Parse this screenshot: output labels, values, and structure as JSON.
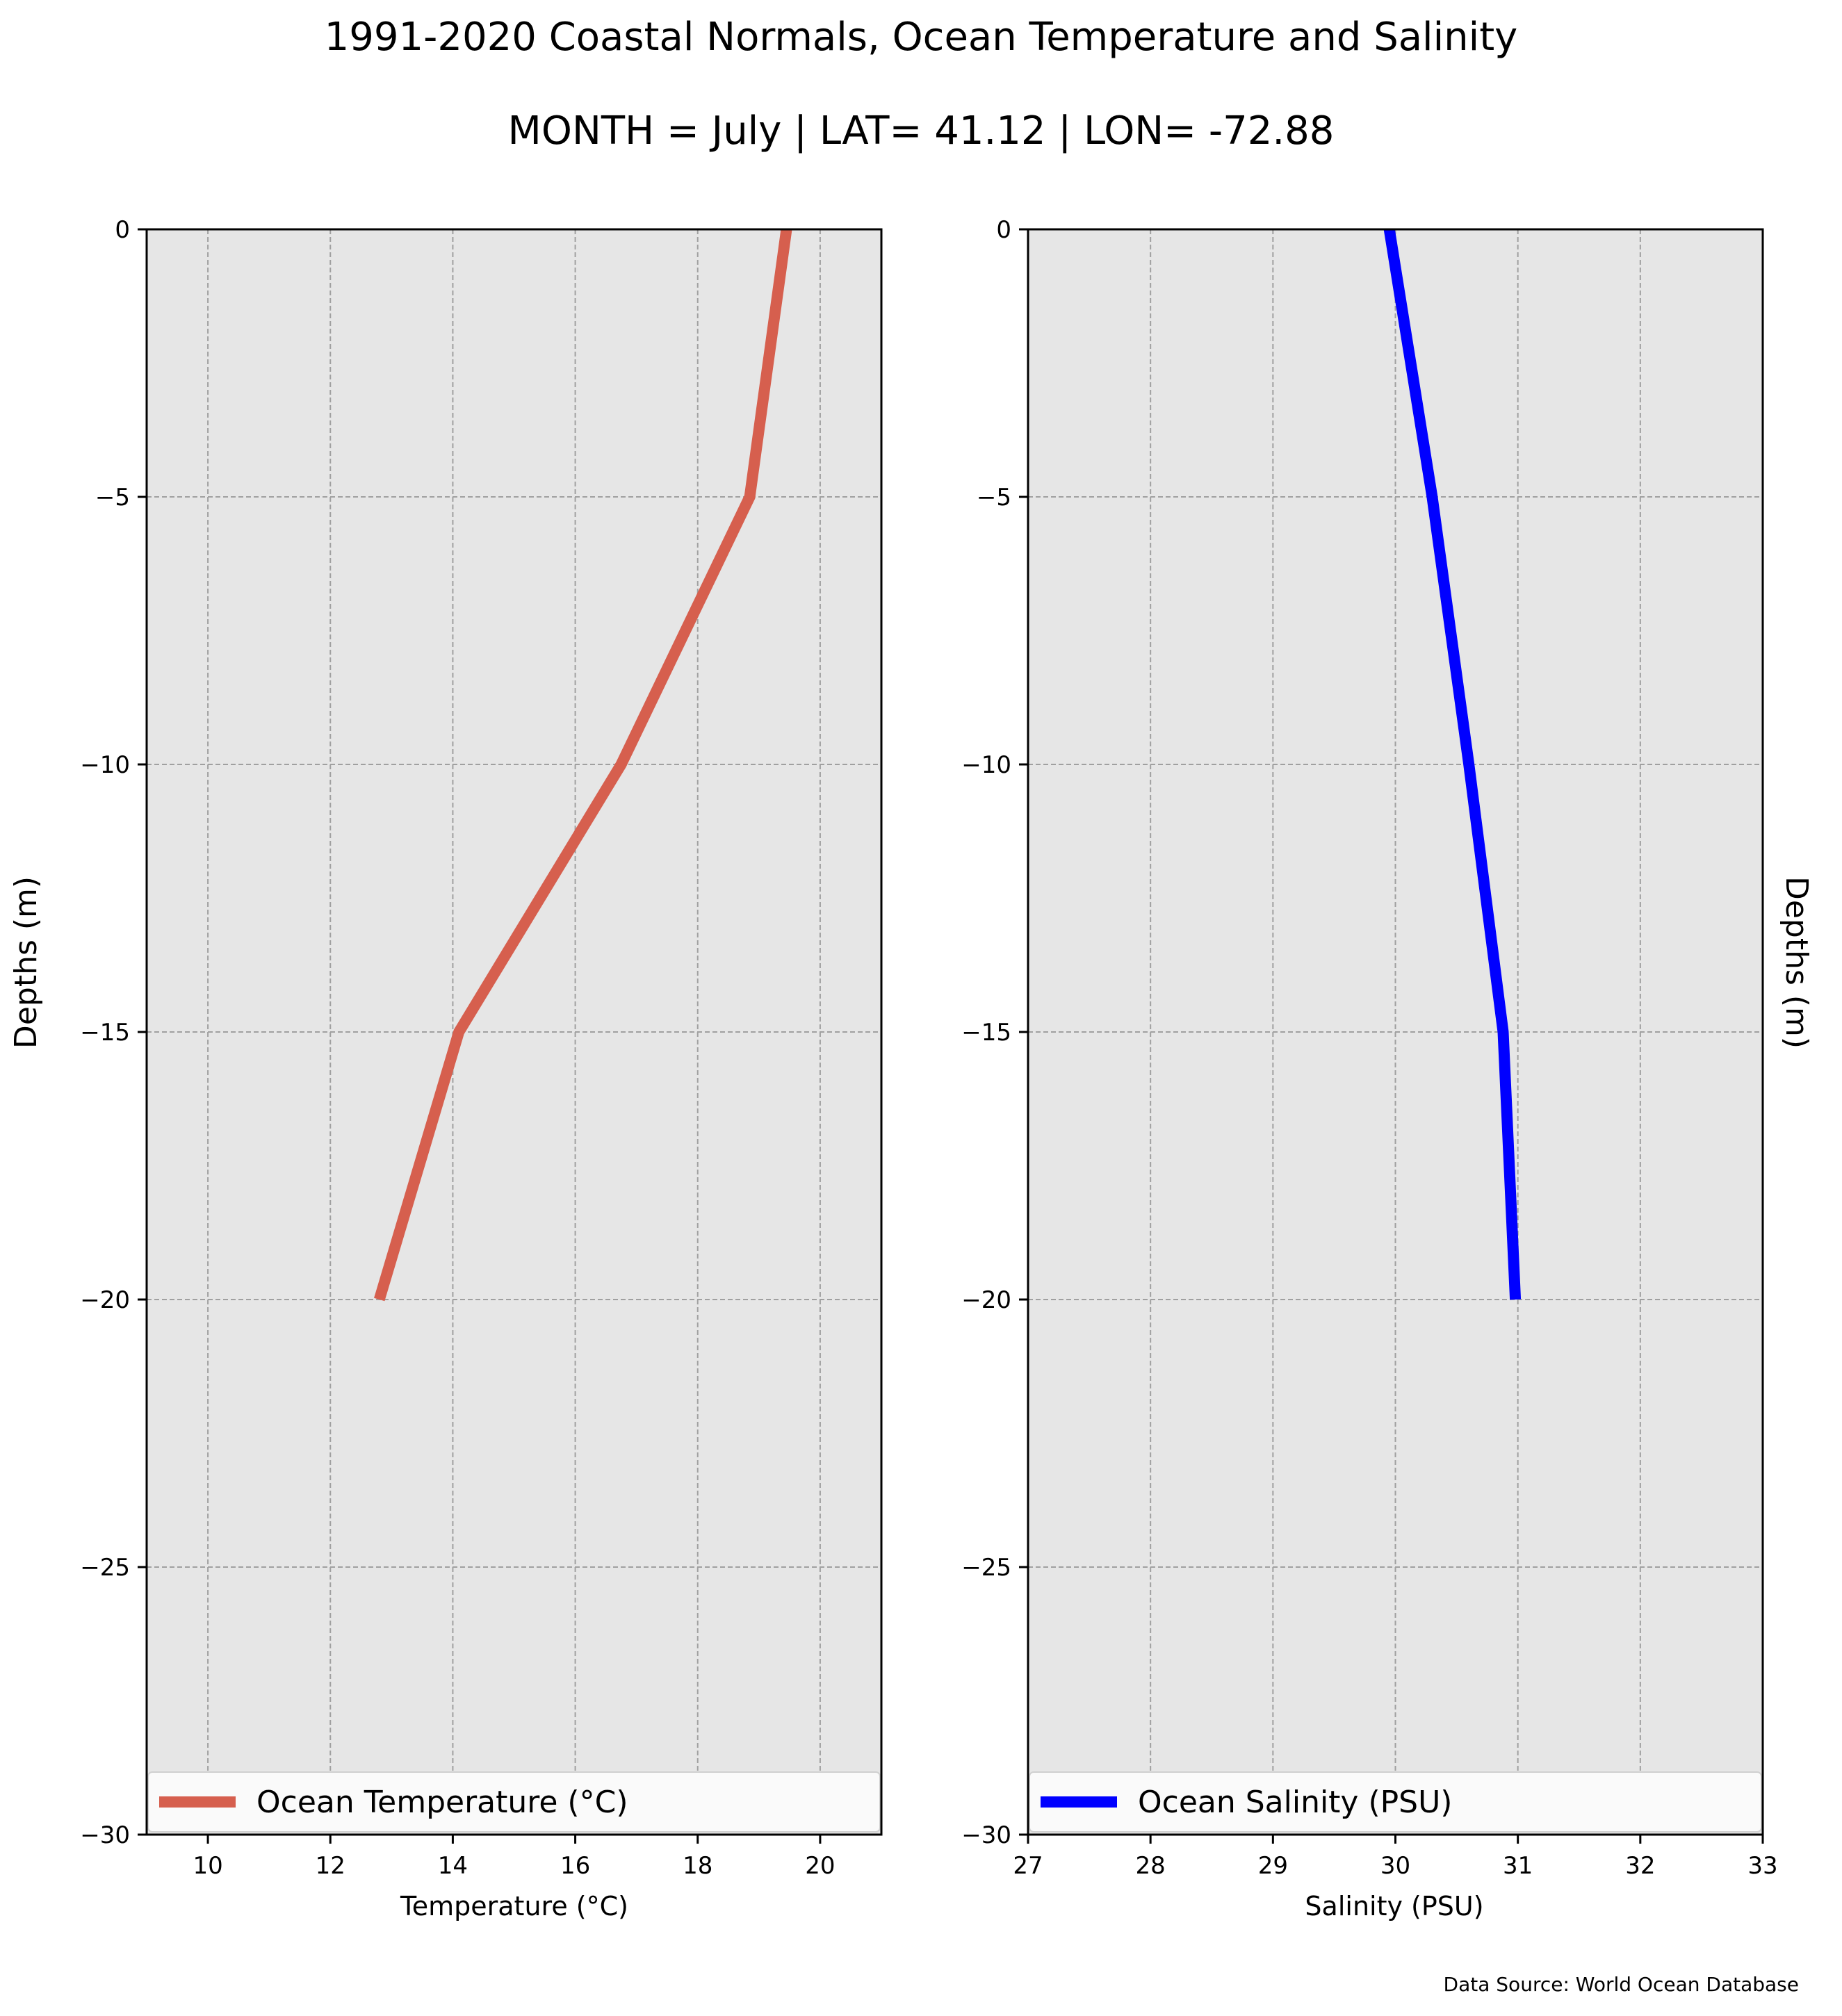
{
  "figure": {
    "title_line1": "1991-2020 Coastal Normals, Ocean Temperature and Salinity",
    "title_line2": "MONTH = July | LAT= 41.12 | LON= -72.88",
    "source_note": "Data Source: World Ocean Database",
    "background": "#ffffff",
    "panel_background": "#e6e6e6",
    "grid_color": "#a0a0a0"
  },
  "chart_data": [
    {
      "type": "line",
      "title": "",
      "xlabel": "Temperature ($^\\circ$C)",
      "xlabel_display": "Temperature (°C)",
      "ylabel": "Depths (m)",
      "xlim": [
        9,
        21
      ],
      "ylim": [
        -30,
        0
      ],
      "xticks": [
        10,
        12,
        14,
        16,
        18,
        20
      ],
      "xtick_labels": [
        "10",
        "12",
        "14",
        "16",
        "18",
        "20"
      ],
      "yticks": [
        0,
        -5,
        -10,
        -15,
        -20,
        -25,
        -30
      ],
      "ytick_labels": [
        "0",
        "−5",
        "−10",
        "−15",
        "−20",
        "−25",
        "−30"
      ],
      "grid": true,
      "legend_location": "lower-center",
      "series": [
        {
          "name": "Ocean Temperature ($^\\circ$C)",
          "legend_display": "Ocean Temperature (°C)",
          "color": "#d65f4e",
          "x": [
            19.45,
            18.85,
            16.75,
            14.1,
            12.8
          ],
          "y": [
            0,
            -5,
            -10,
            -15,
            -20
          ]
        }
      ]
    },
    {
      "type": "line",
      "title": "",
      "xlabel": "Salinity (PSU)",
      "xlabel_display": "Salinity (PSU)",
      "ylabel": "Depths (m)",
      "xlim": [
        27,
        33
      ],
      "ylim": [
        -30,
        0
      ],
      "xticks": [
        27,
        28,
        29,
        30,
        31,
        32,
        33
      ],
      "xtick_labels": [
        "27",
        "28",
        "29",
        "30",
        "31",
        "32",
        "33"
      ],
      "yticks": [
        0,
        -5,
        -10,
        -15,
        -20,
        -25,
        -30
      ],
      "ytick_labels": [
        "0",
        "−5",
        "−10",
        "−15",
        "−20",
        "−25",
        "−30"
      ],
      "grid": true,
      "legend_location": "lower-center",
      "series": [
        {
          "name": "Ocean Salinity (PSU)",
          "legend_display": "Ocean Salinity (PSU)",
          "color": "#0000ff",
          "x": [
            29.95,
            30.3,
            30.6,
            30.88,
            30.98
          ],
          "y": [
            0,
            -5,
            -10,
            -15,
            -20
          ]
        }
      ]
    }
  ]
}
